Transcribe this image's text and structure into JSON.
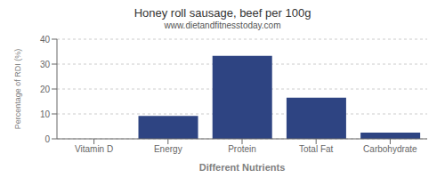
{
  "chart_data": {
    "type": "bar",
    "title": "Honey roll sausage, beef per 100g",
    "subtitle": "www.dietandfitnesstoday.com",
    "xlabel": "Different Nutrients",
    "ylabel": "Percentage of RDI (%)",
    "categories": [
      "Vitamin D",
      "Energy",
      "Protein",
      "Total Fat",
      "Carbohydrate"
    ],
    "values": [
      0.0,
      9.2,
      33.3,
      16.5,
      2.5
    ],
    "color": "#2e4482",
    "ylim": [
      0,
      40
    ],
    "yticks": [
      0,
      10,
      20,
      30,
      40
    ],
    "grid": true
  }
}
